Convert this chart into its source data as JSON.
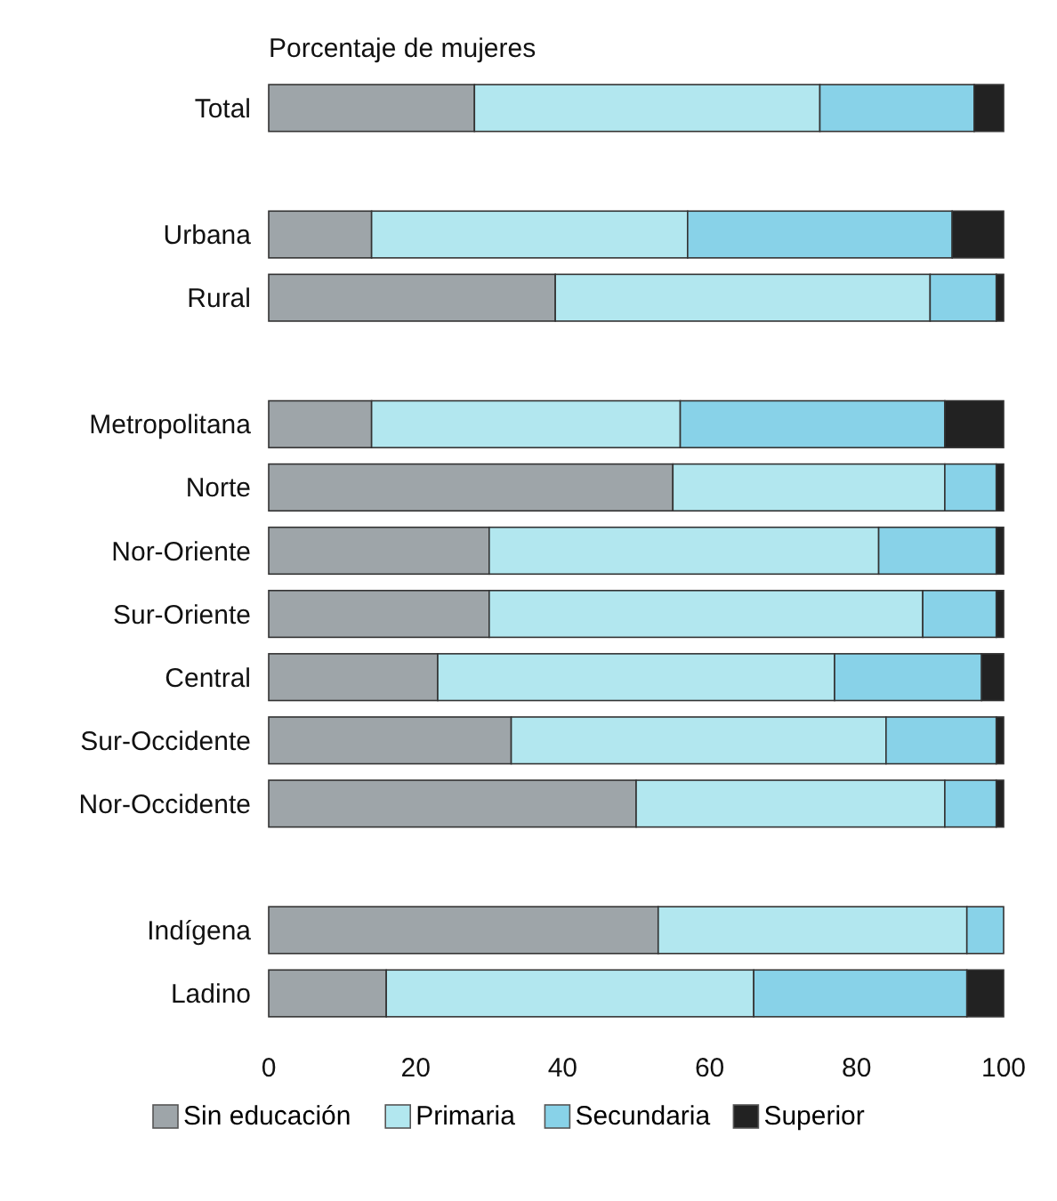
{
  "chart_data": {
    "type": "bar",
    "orientation": "horizontal",
    "stacked": true,
    "title": "Porcentaje de mujeres",
    "categories": [
      "Total",
      null,
      "Urbana",
      "Rural",
      null,
      "Metropolitana",
      "Norte",
      "Nor-Oriente",
      "Sur-Oriente",
      "Central",
      "Sur-Occidente",
      "Nor-Occidente",
      null,
      "Indígena",
      "Ladino"
    ],
    "series": [
      {
        "name": "Sin educación",
        "color": "#9ea5a9",
        "values": [
          28,
          null,
          14,
          39,
          null,
          14,
          55,
          30,
          30,
          23,
          33,
          50,
          null,
          53,
          16
        ]
      },
      {
        "name": "Primaria",
        "color": "#b2e7ef",
        "values": [
          47,
          null,
          43,
          51,
          null,
          42,
          37,
          53,
          59,
          54,
          51,
          42,
          null,
          42,
          50
        ]
      },
      {
        "name": "Secundaria",
        "color": "#88d2e8",
        "values": [
          21,
          null,
          36,
          9,
          null,
          36,
          7,
          16,
          10,
          20,
          15,
          7,
          null,
          5,
          29
        ]
      },
      {
        "name": "Superior",
        "color": "#222222",
        "values": [
          4,
          null,
          7,
          1,
          null,
          8,
          1,
          1,
          1,
          3,
          1,
          1,
          null,
          0,
          5
        ]
      }
    ],
    "xlim": [
      0,
      100
    ],
    "xticks": [
      0,
      20,
      40,
      60,
      80,
      100
    ],
    "legend": "bottom"
  }
}
